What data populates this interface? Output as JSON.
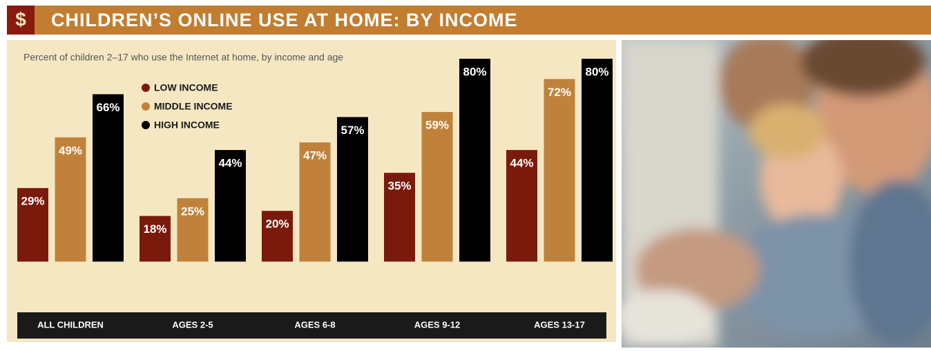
{
  "chart_data": {
    "type": "bar",
    "badge": "$",
    "title": "CHILDREN’S ONLINE USE AT HOME: BY INCOME",
    "subtitle": "Percent of children 2–17 who use the Internet at home, by income and age",
    "categories": [
      "ALL CHILDREN",
      "AGES 2-5",
      "AGES 6-8",
      "AGES 9-12",
      "AGES 13-17"
    ],
    "series": [
      {
        "name": "LOW INCOME",
        "color": "#7a1a0c",
        "values": [
          29,
          18,
          20,
          35,
          44
        ],
        "value_labels": [
          "29%",
          "18%",
          "20%",
          "35%",
          "44%"
        ]
      },
      {
        "name": "MIDDLE INCOME",
        "color": "#c0823a",
        "values": [
          49,
          25,
          47,
          59,
          72
        ],
        "value_labels": [
          "49%",
          "25%",
          "47%",
          "59%",
          "72%"
        ]
      },
      {
        "name": "HIGH INCOME",
        "color": "#000000",
        "values": [
          66,
          44,
          57,
          80,
          80
        ],
        "value_labels": [
          "66%",
          "44%",
          "57%",
          "80%",
          "80%"
        ]
      }
    ],
    "ylim": [
      -20,
      80
    ],
    "legend": "top-left"
  }
}
